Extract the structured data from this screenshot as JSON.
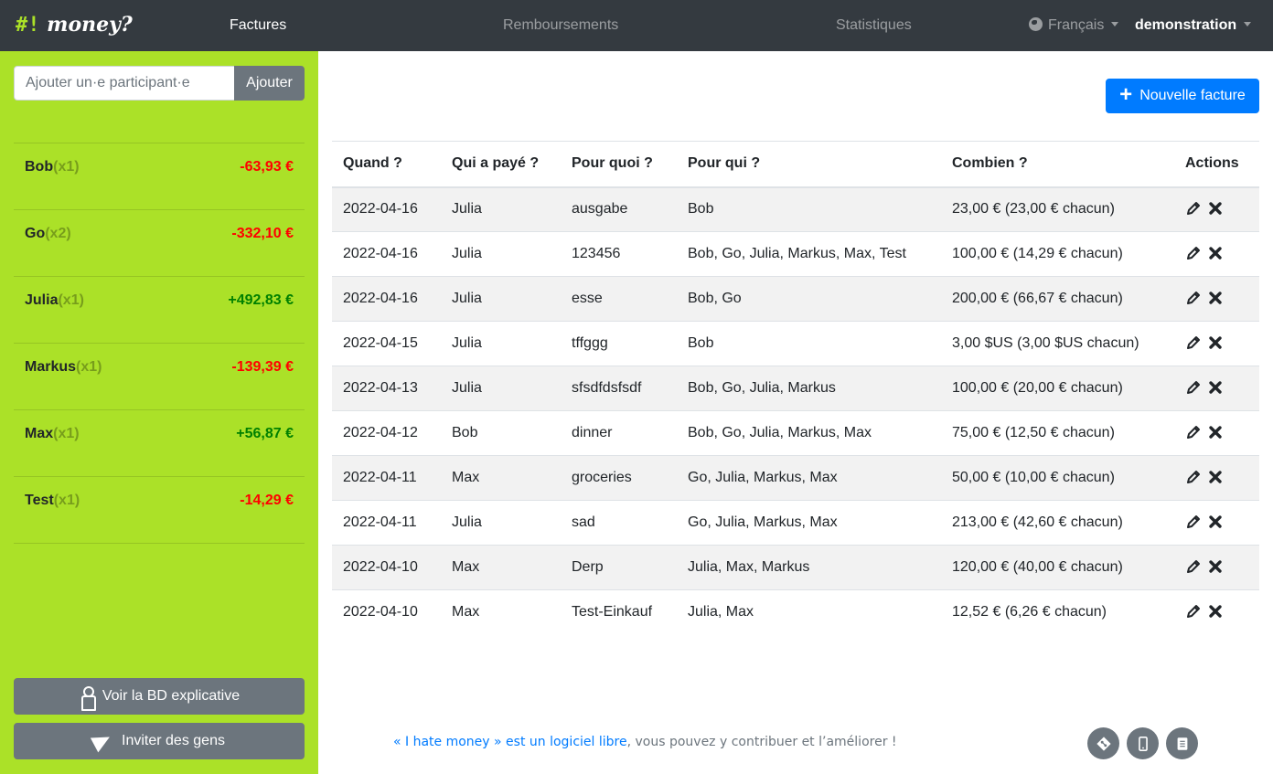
{
  "navbar": {
    "brand_hash": "#!",
    "brand_name": "money?",
    "links": [
      "Factures",
      "Remboursements",
      "Statistiques"
    ],
    "language": "Français",
    "project": "demonstration"
  },
  "sidebar": {
    "add_placeholder": "Ajouter un·e participant·e",
    "add_button": "Ajouter",
    "balances": [
      {
        "name": "Bob",
        "weight": "(x1)",
        "amount": "-63,93 €",
        "sign": "neg"
      },
      {
        "name": "Go",
        "weight": "(x2)",
        "amount": "-332,10 €",
        "sign": "neg"
      },
      {
        "name": "Julia",
        "weight": "(x1)",
        "amount": "+492,83 €",
        "sign": "pos"
      },
      {
        "name": "Markus",
        "weight": "(x1)",
        "amount": "-139,39 €",
        "sign": "neg"
      },
      {
        "name": "Max",
        "weight": "(x1)",
        "amount": "+56,87 €",
        "sign": "pos"
      },
      {
        "name": "Test",
        "weight": "(x1)",
        "amount": "-14,29 €",
        "sign": "neg"
      }
    ],
    "comic_button": "Voir la BD explicative",
    "invite_button": "Inviter des gens"
  },
  "main": {
    "new_bill_button": "Nouvelle facture",
    "table": {
      "headers": {
        "when": "Quand ?",
        "who": "Qui a payé ?",
        "what": "Pour quoi ?",
        "for_whom": "Pour qui ?",
        "amount": "Combien ?",
        "actions": "Actions"
      },
      "rows": [
        {
          "date": "2022-04-16",
          "payer": "Julia",
          "what": "ausgabe",
          "for_whom": "Bob",
          "amount": "23,00 € (23,00 € chacun)"
        },
        {
          "date": "2022-04-16",
          "payer": "Julia",
          "what": "123456",
          "for_whom": "Bob, Go, Julia, Markus, Max, Test",
          "amount": "100,00 € (14,29 € chacun)"
        },
        {
          "date": "2022-04-16",
          "payer": "Julia",
          "what": "esse",
          "for_whom": "Bob, Go",
          "amount": "200,00 € (66,67 € chacun)"
        },
        {
          "date": "2022-04-15",
          "payer": "Julia",
          "what": "tffggg",
          "for_whom": "Bob",
          "amount": "3,00 $US (3,00 $US chacun)"
        },
        {
          "date": "2022-04-13",
          "payer": "Julia",
          "what": "sfsdfdsfsdf",
          "for_whom": "Bob, Go, Julia, Markus",
          "amount": "100,00 € (20,00 € chacun)"
        },
        {
          "date": "2022-04-12",
          "payer": "Bob",
          "what": "dinner",
          "for_whom": "Bob, Go, Julia, Markus, Max",
          "amount": "75,00 € (12,50 € chacun)"
        },
        {
          "date": "2022-04-11",
          "payer": "Max",
          "what": "groceries",
          "for_whom": "Go, Julia, Markus, Max",
          "amount": "50,00 € (10,00 € chacun)"
        },
        {
          "date": "2022-04-11",
          "payer": "Julia",
          "what": "sad",
          "for_whom": "Go, Julia, Markus, Max",
          "amount": "213,00 € (42,60 € chacun)"
        },
        {
          "date": "2022-04-10",
          "payer": "Max",
          "what": "Derp",
          "for_whom": "Julia, Max, Markus",
          "amount": "120,00 € (40,00 € chacun)"
        },
        {
          "date": "2022-04-10",
          "payer": "Max",
          "what": "Test-Einkauf",
          "for_whom": "Julia, Max",
          "amount": "12,52 € (6,26 € chacun)"
        }
      ]
    }
  },
  "footer": {
    "link_text": "« I hate money » est un logiciel libre",
    "rest_text": ", vous pouvez y contribuer et l’améliorer  !",
    "icons": [
      "git-icon",
      "mobile-icon",
      "docs-icon"
    ]
  },
  "colors": {
    "sidebar_bg": "#abe128",
    "navbar_bg": "#343a40",
    "primary": "#007bff",
    "negative": "#ff0000",
    "positive": "#008000"
  }
}
